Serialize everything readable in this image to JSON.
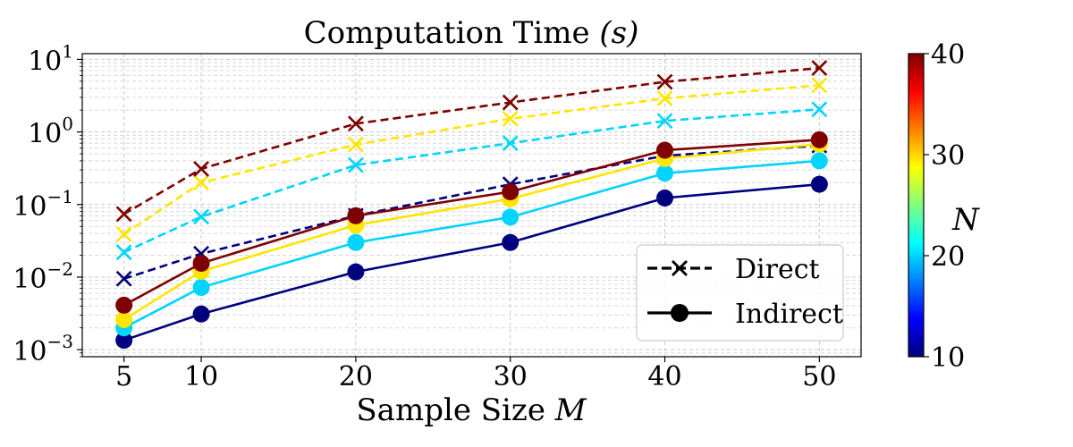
{
  "chart_data": {
    "type": "line",
    "title": "Computation Time",
    "title_unit": "(s)",
    "xlabel": "Sample Size",
    "xlabel_var": "M",
    "ylabel": "",
    "y_scale": "log",
    "ylim": [
      0.0008,
      12
    ],
    "xlim": [
      2.3,
      52.7
    ],
    "x": [
      5,
      10,
      20,
      30,
      40,
      50
    ],
    "x_ticks": [
      "5",
      "10",
      "20",
      "30",
      "40",
      "50"
    ],
    "y_ticks": [
      {
        "base": "10",
        "exp": "1",
        "value": 10
      },
      {
        "base": "10",
        "exp": "0",
        "value": 1
      },
      {
        "base": "10",
        "exp": "−1",
        "value": 0.1
      },
      {
        "base": "10",
        "exp": "−2",
        "value": 0.01
      },
      {
        "base": "10",
        "exp": "−3",
        "value": 0.001
      }
    ],
    "grid": true,
    "legend": {
      "position": "lower-right",
      "entries": [
        {
          "label": "Direct",
          "style": "dashed",
          "marker": "x"
        },
        {
          "label": "Indirect",
          "style": "solid",
          "marker": "o"
        }
      ]
    },
    "colorbar": {
      "label": "N",
      "min": 10,
      "max": 40,
      "ticks": [
        "10",
        "20",
        "30",
        "40"
      ],
      "colormap": "jet"
    },
    "series": [
      {
        "method": "direct",
        "N": 10,
        "color": "#00007f",
        "values": [
          0.0095,
          0.021,
          0.07,
          0.19,
          0.47,
          0.65
        ]
      },
      {
        "method": "direct",
        "N": 20,
        "color": "#00d4ff",
        "values": [
          0.022,
          0.068,
          0.35,
          0.7,
          1.42,
          2.05
        ]
      },
      {
        "method": "direct",
        "N": 30,
        "color": "#ffe600",
        "values": [
          0.039,
          0.2,
          0.67,
          1.52,
          2.9,
          4.4
        ]
      },
      {
        "method": "direct",
        "N": 40,
        "color": "#7f0000",
        "values": [
          0.074,
          0.31,
          1.3,
          2.55,
          4.9,
          7.6
        ]
      },
      {
        "method": "indirect",
        "N": 10,
        "color": "#00007f",
        "values": [
          0.00135,
          0.0031,
          0.0118,
          0.03,
          0.123,
          0.19
        ]
      },
      {
        "method": "indirect",
        "N": 20,
        "color": "#00d4ff",
        "values": [
          0.002,
          0.0072,
          0.03,
          0.067,
          0.27,
          0.4
        ]
      },
      {
        "method": "indirect",
        "N": 30,
        "color": "#ffe600",
        "values": [
          0.0026,
          0.012,
          0.052,
          0.12,
          0.43,
          0.68
        ]
      },
      {
        "method": "indirect",
        "N": 40,
        "color": "#7f0000",
        "values": [
          0.0041,
          0.0155,
          0.07,
          0.15,
          0.56,
          0.78
        ]
      }
    ]
  }
}
